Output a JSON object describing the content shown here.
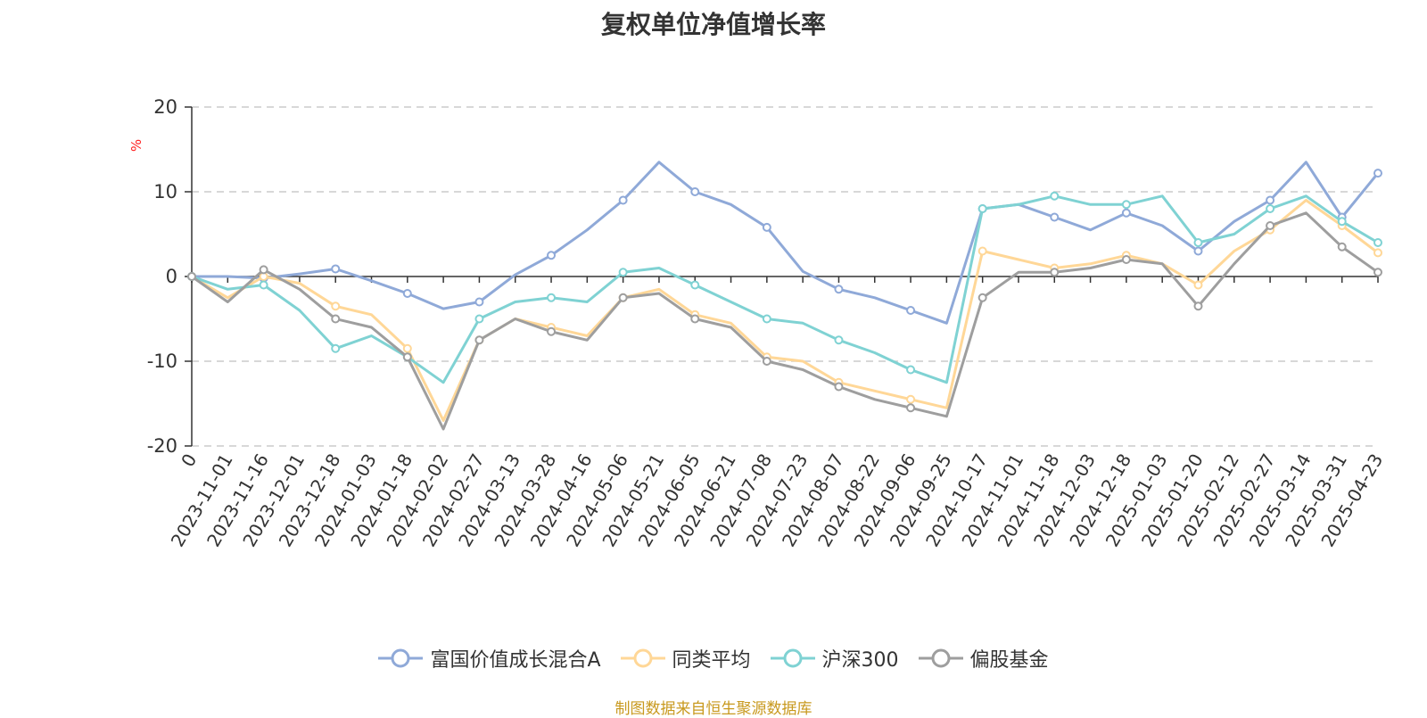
{
  "chart_data": {
    "type": "line",
    "title": "复权单位净值增长率",
    "ylabel": "%",
    "ylim": [
      -20,
      20
    ],
    "yticks": [
      -20,
      -10,
      0,
      10,
      20
    ],
    "grid": true,
    "legend_position": "bottom",
    "x_tick_labels": [
      "0",
      "2023-11-01",
      "2023-11-16",
      "2023-12-01",
      "2023-12-18",
      "2024-01-03",
      "2024-01-18",
      "2024-02-02",
      "2024-02-27",
      "2024-03-13",
      "2024-03-28",
      "2024-04-16",
      "2024-05-06",
      "2024-05-21",
      "2024-06-05",
      "2024-06-21",
      "2024-07-08",
      "2024-07-23",
      "2024-08-07",
      "2024-08-22",
      "2024-09-06",
      "2024-09-25",
      "2024-10-17",
      "2024-11-01",
      "2024-11-18",
      "2024-12-03",
      "2024-12-18",
      "2025-01-03",
      "2025-01-20",
      "2025-02-12",
      "2025-02-27",
      "2025-03-14",
      "2025-03-31",
      "2025-04-23"
    ],
    "series": [
      {
        "name": "富国价值成长混合A",
        "color": "#8fa9d8",
        "values": [
          0,
          0,
          -0.2,
          0.3,
          0.9,
          -0.5,
          -2.0,
          -3.8,
          -3.0,
          0.2,
          2.5,
          5.5,
          9.0,
          13.5,
          10.0,
          8.5,
          5.8,
          0.6,
          -1.5,
          -2.5,
          -4.0,
          -5.5,
          8.0,
          8.5,
          7.0,
          5.5,
          7.5,
          6.0,
          3.0,
          6.5,
          9.0,
          13.5,
          7.0,
          12.2
        ]
      },
      {
        "name": "同类平均",
        "color": "#ffd797",
        "values": [
          0,
          -2.5,
          0,
          -0.8,
          -3.5,
          -4.5,
          -8.5,
          -17.0,
          -7.5,
          -5.0,
          -6.0,
          -7.0,
          -2.5,
          -1.5,
          -4.5,
          -5.5,
          -9.5,
          -10.0,
          -12.5,
          -13.5,
          -14.5,
          -15.5,
          3.0,
          2.0,
          1.0,
          1.5,
          2.5,
          1.5,
          -1.0,
          3.0,
          5.5,
          9.0,
          6.0,
          2.8
        ]
      },
      {
        "name": "沪深300",
        "color": "#7fd2d3",
        "values": [
          0,
          -1.5,
          -1.0,
          -4.0,
          -8.5,
          -7.0,
          -9.5,
          -12.5,
          -5.0,
          -3.0,
          -2.5,
          -3.0,
          0.5,
          1.0,
          -1.0,
          -3.0,
          -5.0,
          -5.5,
          -7.5,
          -9.0,
          -11.0,
          -12.5,
          8.0,
          8.5,
          9.5,
          8.5,
          8.5,
          9.5,
          4.0,
          5.0,
          8.0,
          9.5,
          6.5,
          4.0
        ]
      },
      {
        "name": "偏股基金",
        "color": "#9e9e9e",
        "values": [
          0,
          -3.0,
          0.8,
          -1.5,
          -5.0,
          -6.0,
          -9.5,
          -18.0,
          -7.5,
          -5.0,
          -6.5,
          -7.5,
          -2.5,
          -2.0,
          -5.0,
          -6.0,
          -10.0,
          -11.0,
          -13.0,
          -14.5,
          -15.5,
          -16.5,
          -2.5,
          0.5,
          0.5,
          1.0,
          2.0,
          1.5,
          -3.5,
          1.5,
          6.0,
          7.5,
          3.5,
          0.5
        ]
      }
    ]
  },
  "footer": {
    "source_text": "制图数据来自恒生聚源数据库",
    "source_color": "#c8991e"
  },
  "style": {
    "axis_color": "#333333",
    "grid_color": "#cccccc",
    "ylabel_color": "#ff2020",
    "tick_label_color": "#333333"
  }
}
